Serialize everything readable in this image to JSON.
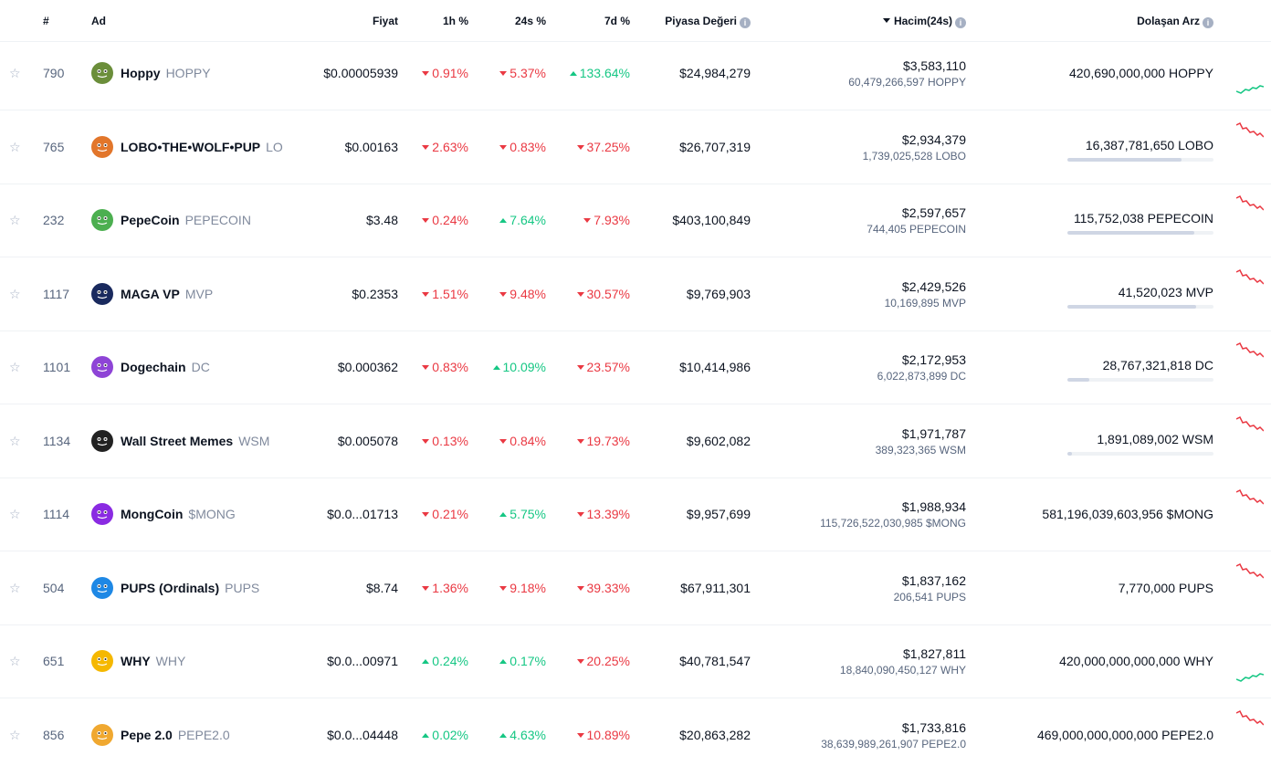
{
  "header": {
    "rank": "#",
    "name": "Ad",
    "price": "Fiyat",
    "h1": "1h %",
    "h24": "24s %",
    "d7": "7d %",
    "mcap": "Piyasa Değeri",
    "volume": "Hacim(24s)",
    "supply": "Dolaşan Arz",
    "info_glyph": "i"
  },
  "colors": {
    "negative": "#ea3943",
    "positive": "#16c784",
    "muted": "#58667e"
  },
  "rows": [
    {
      "rank": "790",
      "name": "Hoppy",
      "symbol": "HOPPY",
      "price": "$0.00005939",
      "h1": "0.91%",
      "h1_dir": "down",
      "h24": "5.37%",
      "h24_dir": "down",
      "d7": "133.64%",
      "d7_dir": "up",
      "mcap": "$24,984,279",
      "volume": "$3,583,110",
      "volume_sub": "60,479,266,597 HOPPY",
      "supply": "420,690,000,000 HOPPY",
      "supply_fraction": null,
      "icon": "frog-icon",
      "icon_color": "#6b8e3a",
      "spark": "up"
    },
    {
      "rank": "765",
      "name": "LOBO•THE•WOLF•PUP",
      "symbol": "LO",
      "price": "$0.00163",
      "h1": "2.63%",
      "h1_dir": "down",
      "h24": "0.83%",
      "h24_dir": "down",
      "d7": "37.25%",
      "d7_dir": "down",
      "mcap": "$26,707,319",
      "volume": "$2,934,379",
      "volume_sub": "1,739,025,528 LOBO",
      "supply": "16,387,781,650 LOBO",
      "supply_fraction": 0.78,
      "icon": "wolf-icon",
      "icon_color": "#e2762b",
      "spark": "down"
    },
    {
      "rank": "232",
      "name": "PepeCoin",
      "symbol": "PEPECOIN",
      "price": "$3.48",
      "h1": "0.24%",
      "h1_dir": "down",
      "h24": "7.64%",
      "h24_dir": "up",
      "d7": "7.93%",
      "d7_dir": "down",
      "mcap": "$403,100,849",
      "volume": "$2,597,657",
      "volume_sub": "744,405 PEPECOIN",
      "supply": "115,752,038 PEPECOIN",
      "supply_fraction": 0.87,
      "icon": "pepe-icon",
      "icon_color": "#4caf50",
      "spark": "down"
    },
    {
      "rank": "1117",
      "name": "MAGA VP",
      "symbol": "MVP",
      "price": "$0.2353",
      "h1": "1.51%",
      "h1_dir": "down",
      "h24": "9.48%",
      "h24_dir": "down",
      "d7": "30.57%",
      "d7_dir": "down",
      "mcap": "$9,769,903",
      "volume": "$2,429,526",
      "volume_sub": "10,169,895 MVP",
      "supply": "41,520,023 MVP",
      "supply_fraction": 0.88,
      "icon": "flag-icon",
      "icon_color": "#1a2a5e",
      "spark": "down"
    },
    {
      "rank": "1101",
      "name": "Dogechain",
      "symbol": "DC",
      "price": "$0.000362",
      "h1": "0.83%",
      "h1_dir": "down",
      "h24": "10.09%",
      "h24_dir": "up",
      "d7": "23.57%",
      "d7_dir": "down",
      "mcap": "$10,414,986",
      "volume": "$2,172,953",
      "volume_sub": "6,022,873,899 DC",
      "supply": "28,767,321,818 DC",
      "supply_fraction": 0.15,
      "icon": "doge-icon",
      "icon_color": "#8e44d6",
      "spark": "down"
    },
    {
      "rank": "1134",
      "name": "Wall Street Memes",
      "symbol": "WSM",
      "price": "$0.005078",
      "h1": "0.13%",
      "h1_dir": "down",
      "h24": "0.84%",
      "h24_dir": "down",
      "d7": "19.73%",
      "d7_dir": "down",
      "mcap": "$9,602,082",
      "volume": "$1,971,787",
      "volume_sub": "389,323,365 WSM",
      "supply": "1,891,089,002 WSM",
      "supply_fraction": 0.03,
      "icon": "bull-icon",
      "icon_color": "#222222",
      "spark": "down"
    },
    {
      "rank": "1114",
      "name": "MongCoin",
      "symbol": "$MONG",
      "price": "$0.0...01713",
      "h1": "0.21%",
      "h1_dir": "down",
      "h24": "5.75%",
      "h24_dir": "up",
      "d7": "13.39%",
      "d7_dir": "down",
      "mcap": "$9,957,699",
      "volume": "$1,988,934",
      "volume_sub": "115,726,522,030,985 $MONG",
      "supply": "581,196,039,603,956 $MONG",
      "supply_fraction": null,
      "icon": "m-letter-icon",
      "icon_color": "#8a2be2",
      "spark": "down"
    },
    {
      "rank": "504",
      "name": "PUPS (Ordinals)",
      "symbol": "PUPS",
      "price": "$8.74",
      "h1": "1.36%",
      "h1_dir": "down",
      "h24": "9.18%",
      "h24_dir": "down",
      "d7": "39.33%",
      "d7_dir": "down",
      "mcap": "$67,911,301",
      "volume": "$1,837,162",
      "volume_sub": "206,541 PUPS",
      "supply": "7,770,000 PUPS",
      "supply_fraction": null,
      "icon": "pup-icon",
      "icon_color": "#1e88e5",
      "spark": "down"
    },
    {
      "rank": "651",
      "name": "WHY",
      "symbol": "WHY",
      "price": "$0.0...00971",
      "h1": "0.24%",
      "h1_dir": "up",
      "h24": "0.17%",
      "h24_dir": "up",
      "d7": "20.25%",
      "d7_dir": "down",
      "mcap": "$40,781,547",
      "volume": "$1,827,811",
      "volume_sub": "18,840,090,450,127 WHY",
      "supply": "420,000,000,000,000 WHY",
      "supply_fraction": null,
      "icon": "elephant-icon",
      "icon_color": "#f5b800",
      "spark": "up"
    },
    {
      "rank": "856",
      "name": "Pepe 2.0",
      "symbol": "PEPE2.0",
      "price": "$0.0...04448",
      "h1": "0.02%",
      "h1_dir": "up",
      "h24": "4.63%",
      "h24_dir": "up",
      "d7": "10.89%",
      "d7_dir": "down",
      "mcap": "$20,863,282",
      "volume": "$1,733,816",
      "volume_sub": "38,639,989,261,907 PEPE2.0",
      "supply": "469,000,000,000,000 PEPE2.0",
      "supply_fraction": null,
      "icon": "pepe-icon",
      "icon_color": "#f0a830",
      "spark": "down"
    }
  ]
}
